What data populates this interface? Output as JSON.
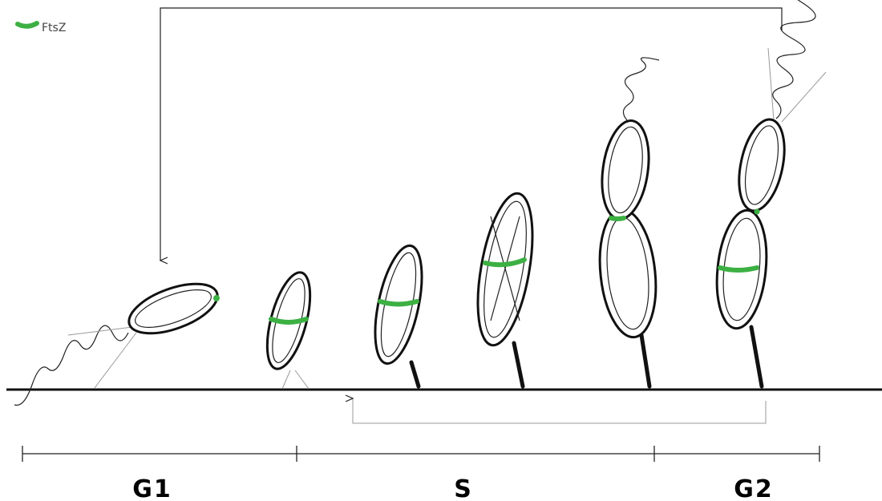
{
  "legend": {
    "label": "FtsZ"
  },
  "phases": [
    {
      "label": "G1"
    },
    {
      "label": "S"
    },
    {
      "label": "G2"
    }
  ]
}
